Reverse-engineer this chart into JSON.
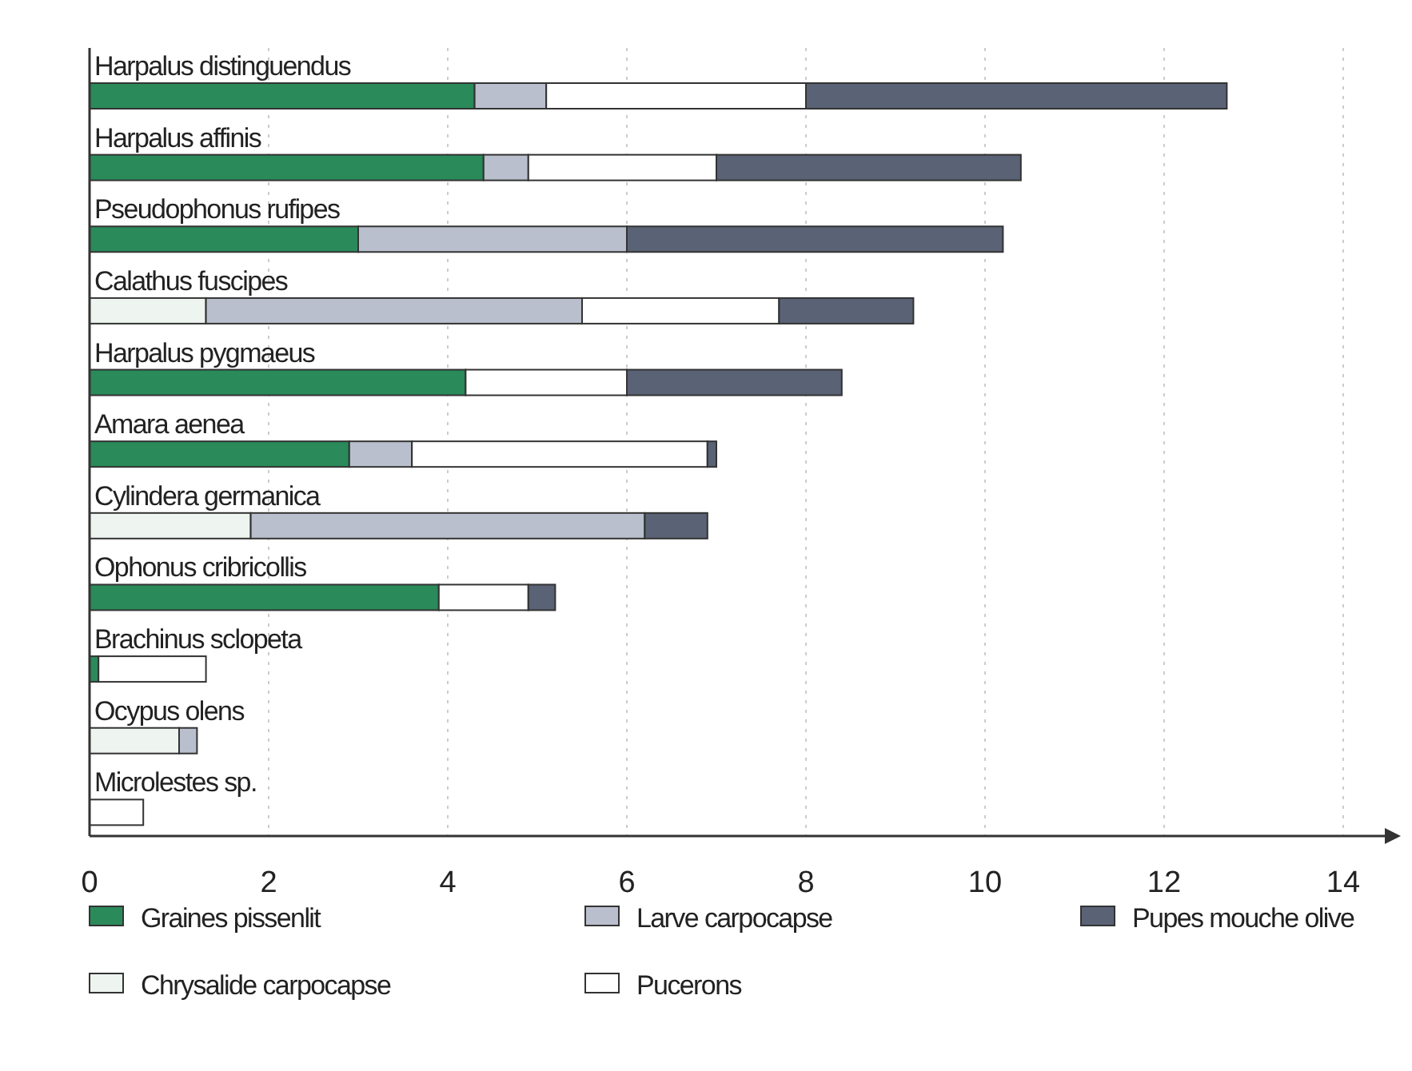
{
  "chart_data": {
    "type": "bar",
    "orientation": "horizontal",
    "stacked": true,
    "categories": [
      "Harpalus distinguendus",
      "Harpalus affinis",
      "Pseudophonus rufipes",
      "Calathus fuscipes",
      "Harpalus pygmaeus",
      "Amara aenea",
      "Cylindera germanica",
      "Ophonus cribricollis",
      "Brachinus sclopeta",
      "Ocypus olens",
      "Microlestes sp."
    ],
    "series": [
      {
        "name": "Graines pissenlit",
        "color": "#2a8a5a",
        "values": [
          4.3,
          4.4,
          3.0,
          0,
          4.2,
          2.9,
          0,
          3.9,
          0.1,
          0,
          0
        ]
      },
      {
        "name": "Chrysalide carpocapse",
        "color": "#eef4f0",
        "values": [
          0,
          0,
          0,
          1.3,
          0,
          0,
          1.8,
          0,
          0,
          1.0,
          0
        ]
      },
      {
        "name": "Larve carpocapse",
        "color": "#b9bfcc",
        "values": [
          0.8,
          0.5,
          3.0,
          4.2,
          0,
          0.7,
          4.4,
          0,
          0,
          0.2,
          0
        ]
      },
      {
        "name": "Pucerons",
        "color": "#ffffff",
        "values": [
          2.9,
          2.1,
          0,
          2.2,
          1.8,
          3.3,
          0,
          1.0,
          1.2,
          0,
          0.6
        ]
      },
      {
        "name": "Pupes mouche olive",
        "color": "#5a6275",
        "values": [
          4.7,
          3.4,
          4.2,
          1.5,
          2.4,
          0.1,
          0.7,
          0.3,
          0,
          0,
          0
        ]
      }
    ],
    "xlim": [
      0,
      14.5
    ],
    "xticks": [
      0,
      2,
      4,
      6,
      8,
      10,
      12,
      14
    ],
    "grid": "x",
    "legend": "bottom"
  }
}
